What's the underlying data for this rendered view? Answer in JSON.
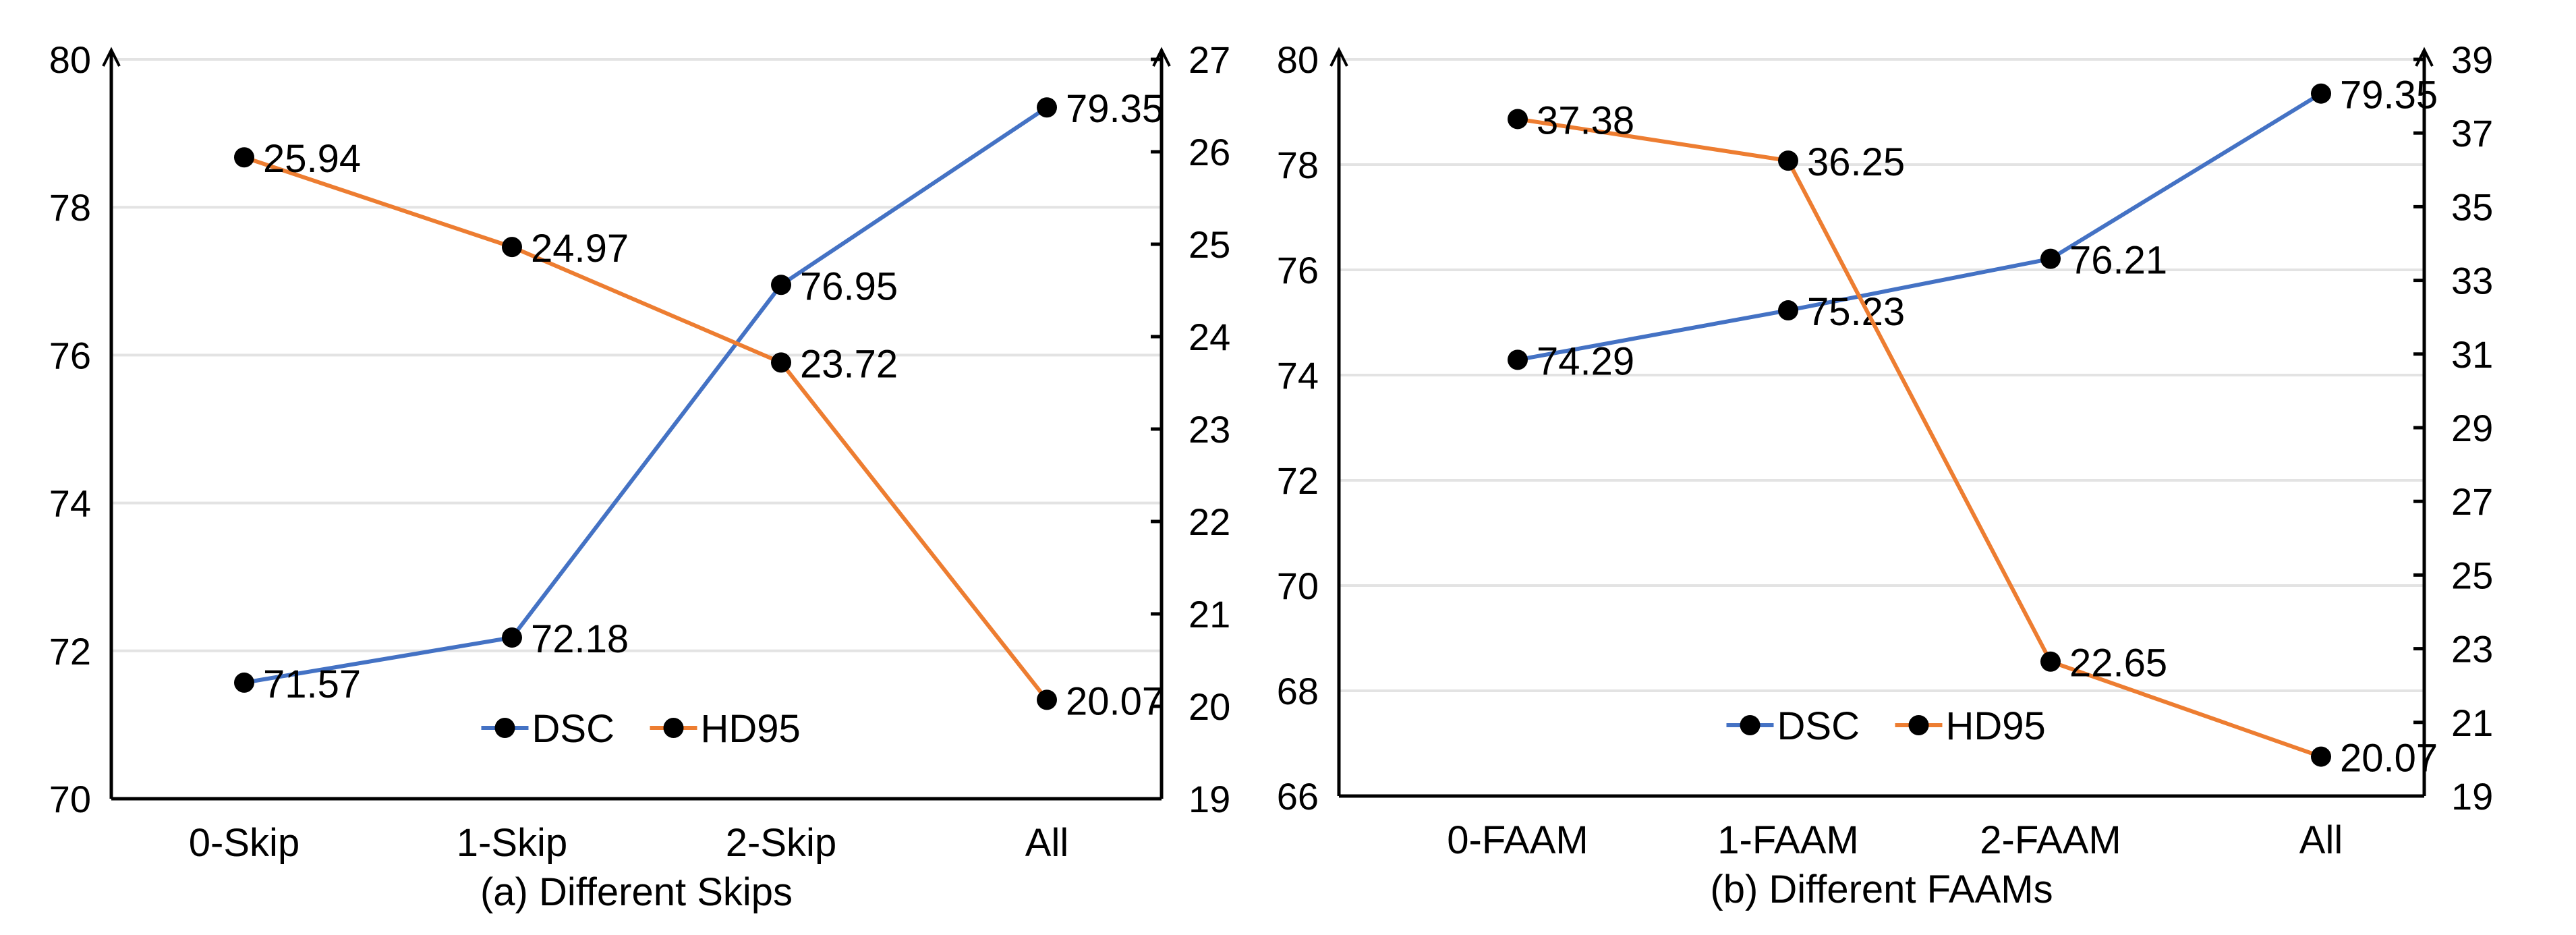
{
  "chart_data": [
    {
      "type": "line",
      "title": "(a) Different Skips",
      "categories": [
        "0-Skip",
        "1-Skip",
        "2-Skip",
        "All"
      ],
      "ylim_left": [
        70,
        80
      ],
      "yticks_left": [
        70,
        72,
        74,
        76,
        78,
        80
      ],
      "ylim_right": [
        19,
        27
      ],
      "yticks_right": [
        19,
        20,
        21,
        22,
        23,
        24,
        25,
        26,
        27
      ],
      "grid": true,
      "legend_placement": "bottom-center",
      "series": [
        {
          "name": "DSC",
          "axis": "left",
          "color": "#4472C4",
          "values": [
            71.57,
            72.18,
            76.95,
            79.35
          ],
          "labels": [
            "71.57",
            "72.18",
            "76.95",
            "79.35"
          ]
        },
        {
          "name": "HD95",
          "axis": "right",
          "color": "#ED7D31",
          "values": [
            25.94,
            24.97,
            23.72,
            20.07
          ],
          "labels": [
            "25.94",
            "24.97",
            "23.72",
            "20.07"
          ]
        }
      ]
    },
    {
      "type": "line",
      "title": "(b) Different FAAMs",
      "categories": [
        "0-FAAM",
        "1-FAAM",
        "2-FAAM",
        "All"
      ],
      "ylim_left": [
        66,
        80
      ],
      "yticks_left": [
        66,
        68,
        70,
        72,
        74,
        76,
        78,
        80
      ],
      "ylim_right": [
        19,
        39
      ],
      "yticks_right": [
        19,
        21,
        23,
        25,
        27,
        29,
        31,
        33,
        35,
        37,
        39
      ],
      "grid": true,
      "legend_placement": "bottom-center",
      "series": [
        {
          "name": "DSC",
          "axis": "left",
          "color": "#4472C4",
          "values": [
            74.29,
            75.23,
            76.21,
            79.35
          ],
          "labels": [
            "74.29",
            "75.23",
            "76.21",
            "79.35"
          ]
        },
        {
          "name": "HD95",
          "axis": "right",
          "color": "#ED7D31",
          "values": [
            37.38,
            36.25,
            22.65,
            20.07
          ],
          "labels": [
            "37.38",
            "36.25",
            "22.65",
            "20.07"
          ]
        }
      ]
    }
  ]
}
